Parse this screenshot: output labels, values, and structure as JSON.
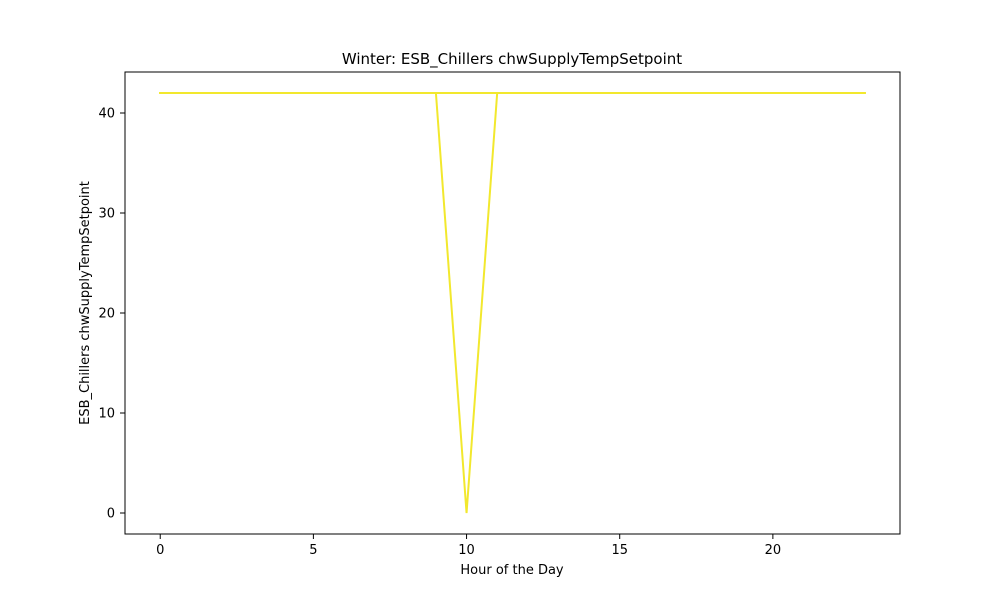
{
  "chart_data": {
    "type": "line",
    "title": "Winter: ESB_Chillers chwSupplyTempSetpoint",
    "xlabel": "Hour of the Day",
    "ylabel": "ESB_Chillers chwSupplyTempSetpoint",
    "xlim": [
      -1.15,
      24.15
    ],
    "ylim": [
      -2.1,
      44.1
    ],
    "xticks": [
      0,
      5,
      10,
      15,
      20
    ],
    "xtick_labels": [
      "0",
      "5",
      "10",
      "15",
      "20"
    ],
    "yticks": [
      0,
      10,
      20,
      30,
      40
    ],
    "ytick_labels": [
      "0",
      "10",
      "20",
      "30",
      "40"
    ],
    "grid": false,
    "series": [
      {
        "color": "#f2e82d",
        "x": [
          0,
          1,
          2,
          3,
          4,
          5,
          6,
          7,
          8,
          9,
          10,
          11,
          12,
          13,
          14,
          15,
          16,
          17,
          18,
          19,
          20,
          21,
          22,
          23
        ],
        "y": [
          42,
          42,
          42,
          42,
          42,
          42,
          42,
          42,
          42,
          42,
          42,
          42,
          42,
          42,
          42,
          42,
          42,
          42,
          42,
          42,
          42,
          42,
          42,
          42
        ]
      },
      {
        "color": "#f2e82d",
        "x": [
          0,
          1,
          2,
          3,
          4,
          5,
          6,
          7,
          8,
          9,
          10,
          11,
          12,
          13,
          14,
          15,
          16,
          17,
          18,
          19,
          20,
          21,
          22,
          23
        ],
        "y": [
          42,
          42,
          42,
          42,
          42,
          42,
          42,
          42,
          42,
          42,
          42,
          42,
          42,
          42,
          42,
          42,
          42,
          42,
          42,
          42,
          42,
          42,
          42,
          42
        ]
      },
      {
        "color": "#f2e82d",
        "x": [
          0,
          1,
          2,
          3,
          4,
          5,
          6,
          7,
          8,
          9,
          10,
          11,
          12,
          13,
          14,
          15,
          16,
          17,
          18,
          19,
          20,
          21,
          22,
          23
        ],
        "y": [
          42,
          42,
          42,
          42,
          42,
          42,
          42,
          42,
          42,
          42,
          0,
          42,
          42,
          42,
          42,
          42,
          42,
          42,
          42,
          42,
          42,
          42,
          42,
          42
        ]
      }
    ]
  }
}
